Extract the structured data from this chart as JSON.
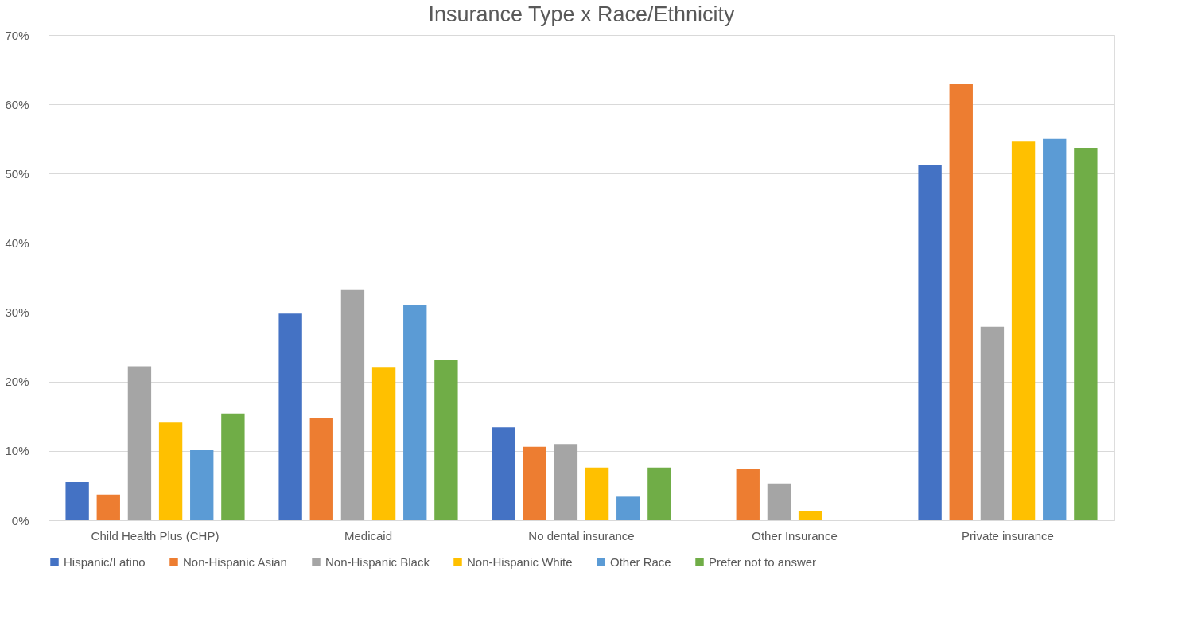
{
  "chart_data": {
    "type": "bar",
    "title": "Insurance Type x Race/Ethnicity",
    "categories": [
      "Child Health Plus (CHP)",
      "Medicaid",
      "No dental insurance",
      "Other Insurance",
      "Private insurance"
    ],
    "series": [
      {
        "name": "Hispanic/Latino",
        "color": "#4472c4",
        "values": [
          5.5,
          29.8,
          13.4,
          0,
          51.2
        ]
      },
      {
        "name": "Non-Hispanic Asian",
        "color": "#ed7d31",
        "values": [
          3.7,
          14.7,
          10.6,
          7.4,
          63.0
        ]
      },
      {
        "name": "Non-Hispanic Black",
        "color": "#a5a5a5",
        "values": [
          22.2,
          33.3,
          11.0,
          5.3,
          27.9
        ]
      },
      {
        "name": "Non-Hispanic White",
        "color": "#ffc000",
        "values": [
          14.1,
          22.0,
          7.6,
          1.3,
          54.7
        ]
      },
      {
        "name": "Other Race",
        "color": "#5b9bd5",
        "values": [
          10.1,
          31.1,
          3.4,
          0,
          55.0
        ]
      },
      {
        "name": "Prefer not to answer",
        "color": "#70ad47",
        "values": [
          15.4,
          23.1,
          7.6,
          0,
          53.7
        ]
      }
    ],
    "ylim": [
      0,
      70
    ],
    "yticks": [
      {
        "value": 0,
        "label": "0%"
      },
      {
        "value": 10,
        "label": "10%"
      },
      {
        "value": 20,
        "label": "20%"
      },
      {
        "value": 30,
        "label": "30%"
      },
      {
        "value": 40,
        "label": "40%"
      },
      {
        "value": 50,
        "label": "50%"
      },
      {
        "value": 60,
        "label": "60%"
      },
      {
        "value": 70,
        "label": "70%"
      }
    ],
    "grid": "y",
    "legend": "bottom"
  }
}
